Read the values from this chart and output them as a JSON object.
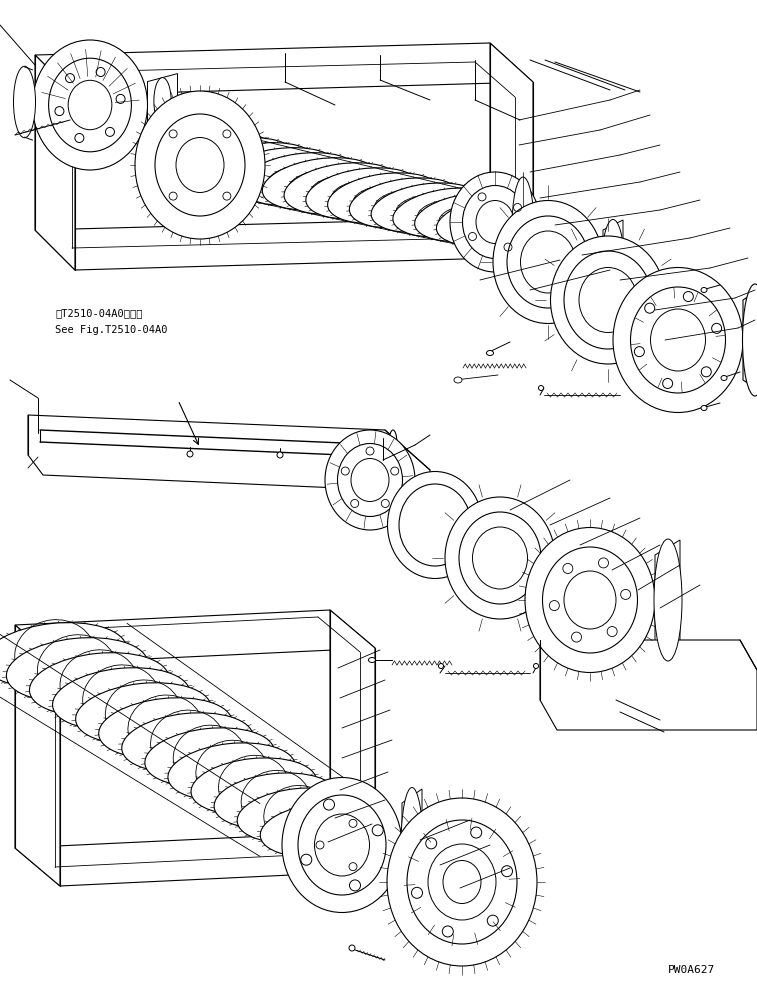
{
  "background_color": "#ffffff",
  "line_color": "#000000",
  "text_color": "#000000",
  "figure_code": "PW0A627",
  "reference_text_line1": "第T2510-04A0図参照",
  "reference_text_line2": "See Fig.T2510-04A0",
  "fig_width": 7.57,
  "fig_height": 9.99,
  "dpi": 100
}
